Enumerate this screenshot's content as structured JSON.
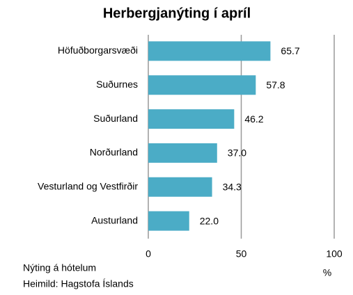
{
  "chart_data": {
    "type": "hbar",
    "title": "Herbergjanýting í apríl",
    "categories": [
      "Höfuðborgarsvæði",
      "Suðurnes",
      "Suðurland",
      "Norðurland",
      "Vesturland og Vestfirðir",
      "Austurland"
    ],
    "values": [
      65.7,
      57.8,
      46.2,
      37.0,
      34.3,
      22.0
    ],
    "value_labels": [
      "65.7",
      "57.8",
      "46.2",
      "37.0",
      "34.3",
      "22.0"
    ],
    "color": "#4bacc6",
    "xlim": [
      0,
      100
    ],
    "xticks": [
      0,
      50,
      100
    ],
    "grid": true,
    "x_label": "%",
    "notes": [
      "Nýting á hótelum",
      "Heimild: Hagstofa Íslands"
    ]
  }
}
